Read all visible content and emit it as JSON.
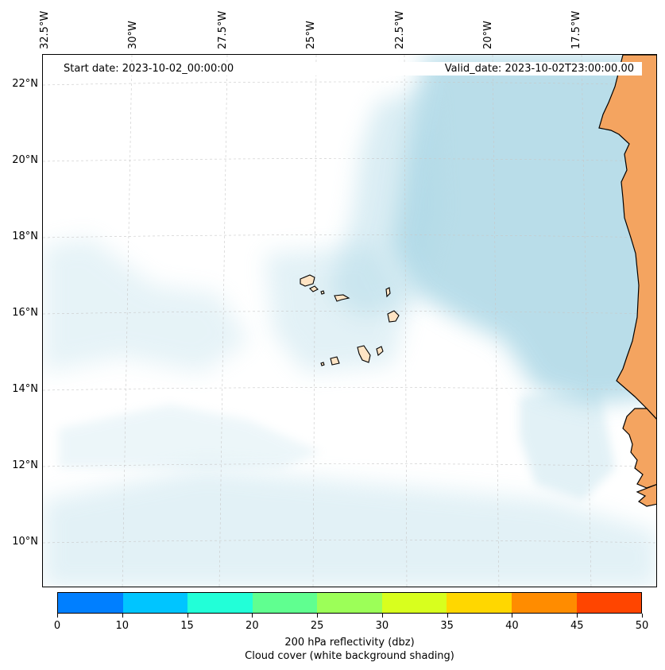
{
  "map": {
    "lon_ticks": [
      "32.5°W",
      "30°W",
      "27.5°W",
      "25°W",
      "22.5°W",
      "20°W",
      "17.5°W"
    ],
    "lat_ticks": [
      "22°N",
      "20°N",
      "18°N",
      "16°N",
      "14°N",
      "12°N",
      "10°N"
    ],
    "start_date": "Start date: 2023-10-02_00:00:00",
    "valid_date": "Valid_date: 2023-10-02T23:00:00.00",
    "colors": {
      "land": "#f4a460",
      "cloud": "#add8e6",
      "coast": "#000000",
      "grid": "#c8c8c8"
    }
  },
  "colorbar": {
    "ticks": [
      "0",
      "10",
      "15",
      "20",
      "25",
      "30",
      "35",
      "40",
      "45",
      "50"
    ],
    "colors": [
      "#007fff",
      "#00c5ff",
      "#22ffd8",
      "#60ff90",
      "#9cff58",
      "#d8ff1e",
      "#ffd700",
      "#ff8c00",
      "#ff4500"
    ],
    "label_line1": "200 hPa reflectivity (dbz)",
    "label_line2": "Cloud cover (white background shading)"
  }
}
